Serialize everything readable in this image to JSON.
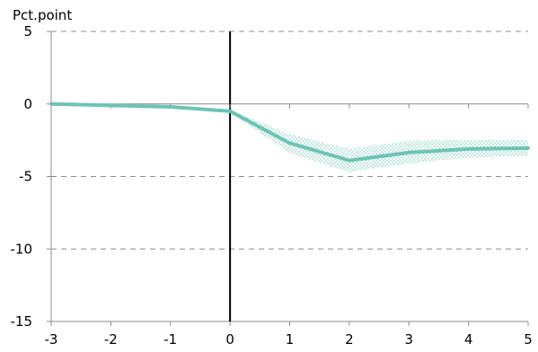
{
  "chart_data": {
    "type": "line",
    "title": "",
    "xlabel": "",
    "ylabel": "Pct.point",
    "xlim": [
      -3,
      5
    ],
    "ylim": [
      -15,
      5
    ],
    "xticks": [
      "-3",
      "-2",
      "-1",
      "0",
      "1",
      "2",
      "3",
      "4",
      "5"
    ],
    "yticks": [
      "5",
      "0",
      "-5",
      "-10",
      "-15"
    ],
    "grid": true,
    "legend": "none",
    "vertical_line_at": 0,
    "series": [
      {
        "color": "#6cc4b4",
        "x": [
          -3,
          -2,
          -1,
          0,
          1,
          2,
          3,
          4,
          5
        ],
        "y": [
          0,
          -0.1,
          -0.2,
          -0.5,
          -2.7,
          -3.9,
          -3.35,
          -3.1,
          -3.05
        ]
      }
    ],
    "band": {
      "color": "#6cc4b4",
      "x": [
        -3,
        -2,
        -1,
        0,
        1,
        2,
        3,
        4,
        5
      ],
      "lower": [
        0,
        -0.1,
        -0.25,
        -0.6,
        -3.4,
        -4.7,
        -4.1,
        -3.7,
        -3.6
      ],
      "upper": [
        0,
        -0.05,
        -0.15,
        -0.4,
        -2.1,
        -3.1,
        -2.55,
        -2.5,
        -2.45
      ]
    }
  }
}
